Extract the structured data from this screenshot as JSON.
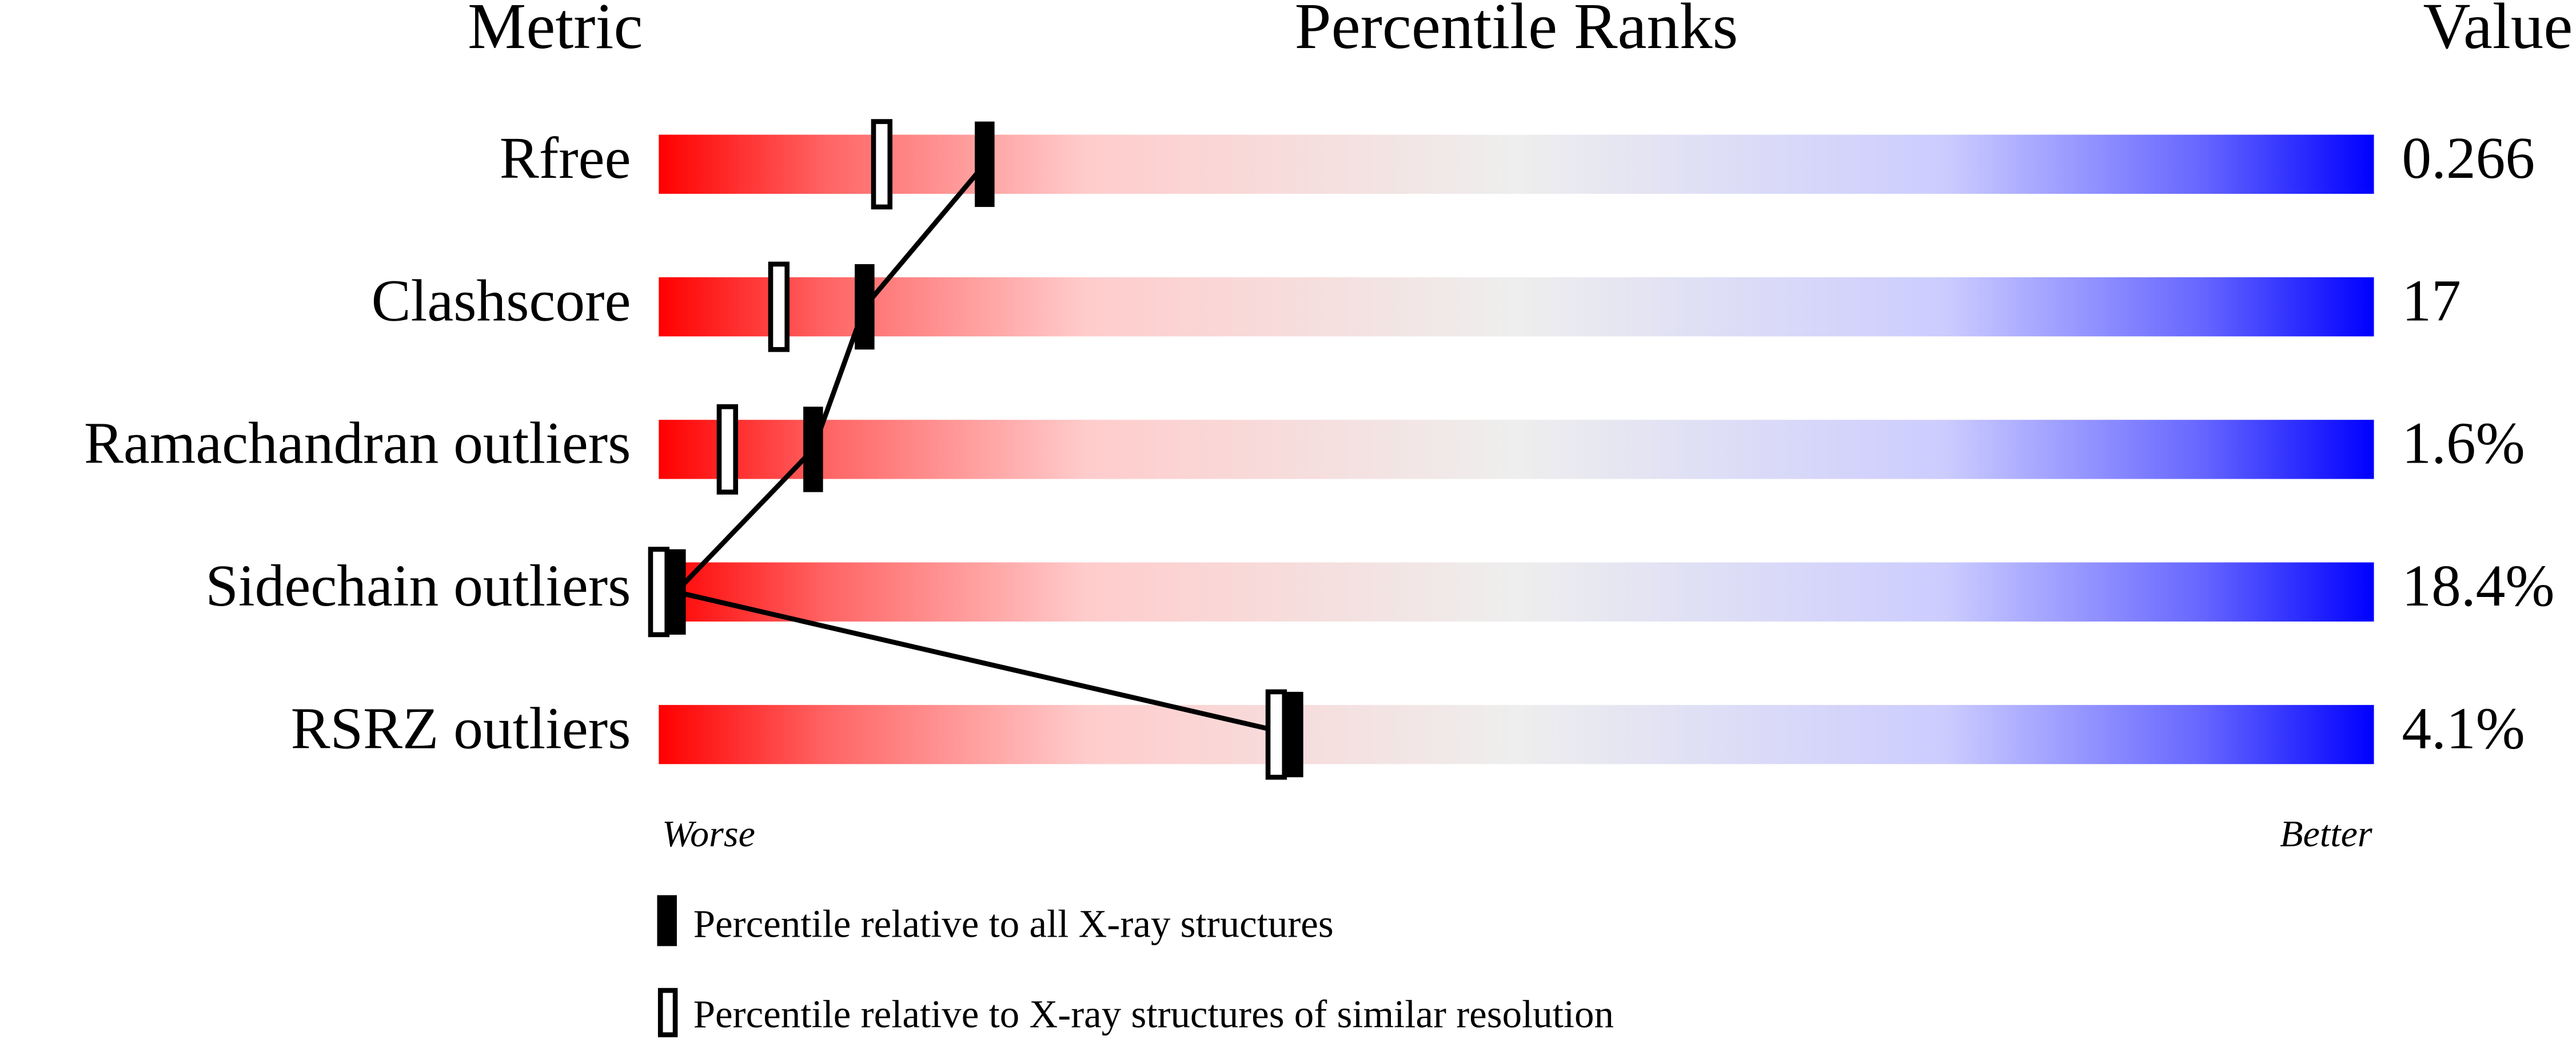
{
  "chart_data": {
    "type": "percentile-slider",
    "headers": [
      "Metric",
      "Percentile Ranks",
      "Value"
    ],
    "categories": [
      "Rfree",
      "Clashscore",
      "Ramachandran outliers",
      "Sidechain outliers",
      "RSRZ outliers"
    ],
    "values": [
      0.266,
      17,
      1.6,
      18.4,
      4.1
    ],
    "value_labels": [
      "0.266",
      "17",
      "1.6%",
      "18.4%",
      "4.1%"
    ],
    "series": [
      {
        "name": "Percentile relative to all X-ray structures",
        "color": "#000000",
        "values": [
          19,
          12,
          9,
          1,
          37
        ]
      },
      {
        "name": "Percentile relative to X-ray structures of similar resolution",
        "color": "#000000",
        "values": [
          13,
          7,
          4,
          0,
          36
        ]
      }
    ],
    "xlim": [
      0,
      100
    ],
    "x_label_low": "Worse",
    "x_label_high": "Better"
  }
}
